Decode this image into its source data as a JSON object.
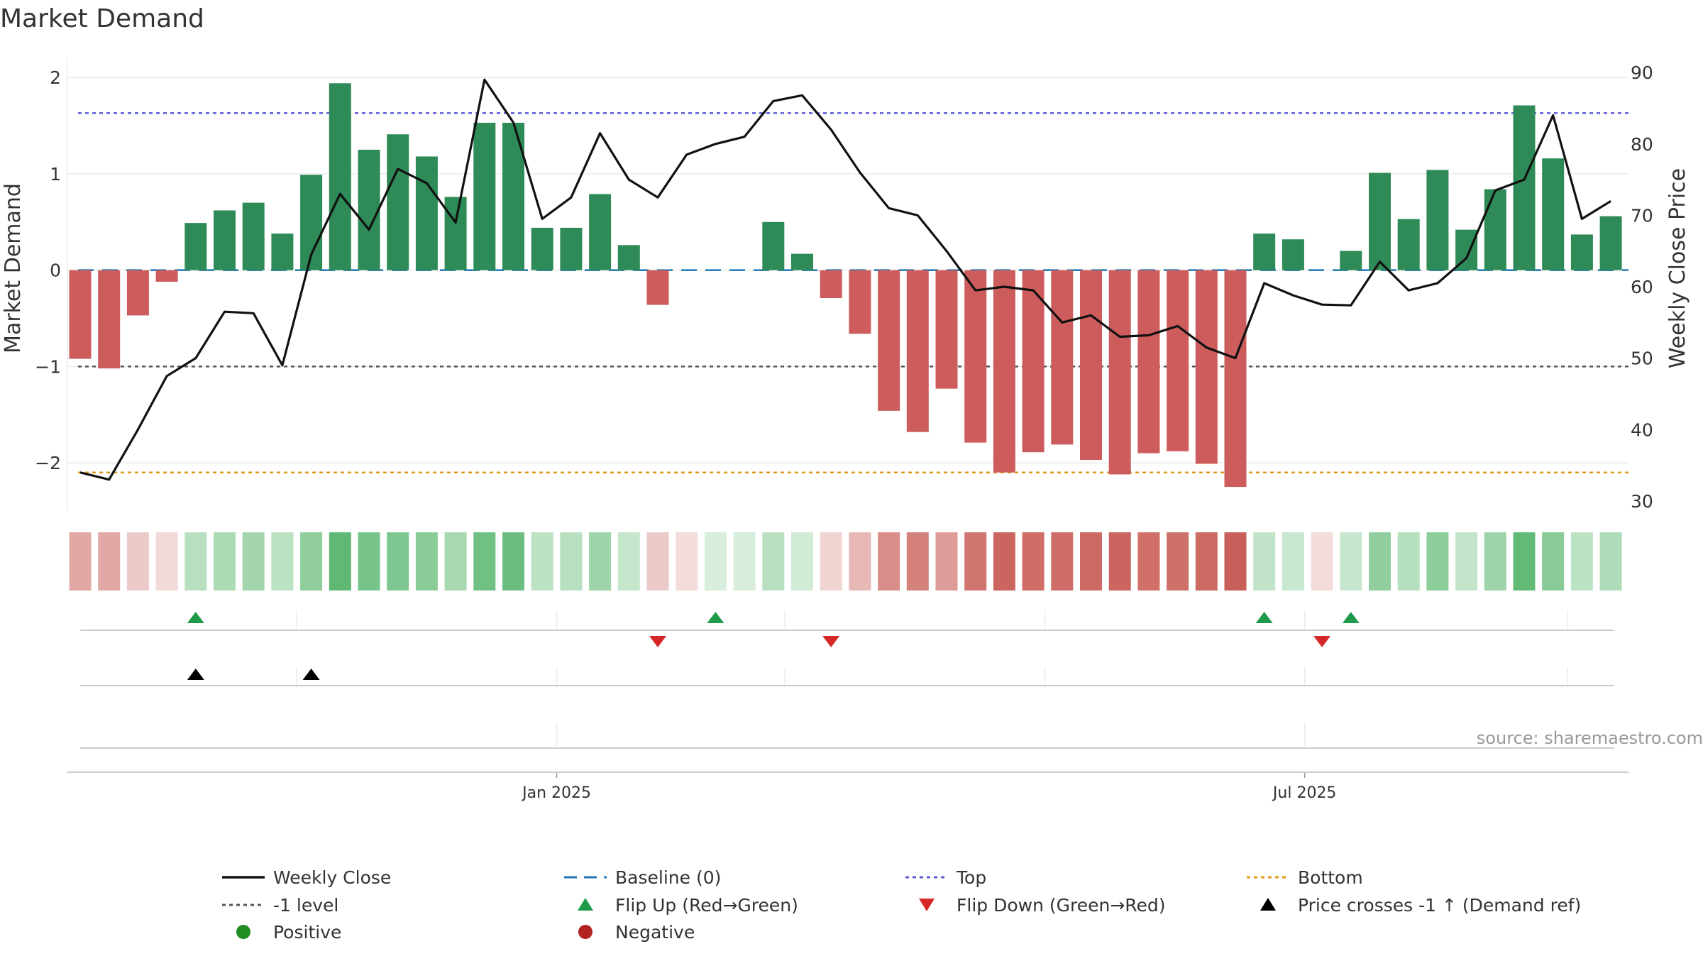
{
  "chart_data": {
    "type": "bar",
    "title": "Market Demand",
    "ylabel": "Market Demand",
    "y2label": "Weekly Close Price",
    "ylim": [
      -2.5,
      2.2
    ],
    "y2lim": [
      28.6,
      92
    ],
    "yticks": [
      2,
      1,
      0,
      -1,
      -2
    ],
    "ytick_labels": [
      "2",
      "1",
      "0",
      "−1",
      "−2"
    ],
    "y2ticks": [
      90,
      80,
      70,
      60,
      50,
      40,
      30
    ],
    "xtick_labels": [
      "Jan 2025",
      "Jul 2025"
    ],
    "xtick_index": [
      16.5,
      42.4
    ],
    "grid": true,
    "reference_lines": {
      "baseline": 0,
      "top": 1.63,
      "minus_one": -1,
      "bottom": -2.1
    },
    "series": [
      {
        "name": "Market Demand",
        "type": "bar",
        "values": [
          -0.92,
          -1.02,
          -0.47,
          -0.12,
          0.49,
          0.62,
          0.7,
          0.38,
          0.99,
          1.94,
          1.25,
          1.41,
          1.18,
          0.76,
          1.53,
          1.53,
          0.44,
          0.44,
          0.79,
          0.26,
          -0.36,
          0.0,
          0.0,
          0.0,
          0.5,
          0.17,
          -0.29,
          -0.66,
          -1.46,
          -1.68,
          -1.23,
          -1.79,
          -2.1,
          -1.89,
          -1.81,
          -1.97,
          -2.12,
          -1.9,
          -1.88,
          -2.01,
          -2.25,
          0.38,
          0.32,
          0.0,
          0.2,
          1.01,
          0.53,
          1.04,
          0.42,
          0.84,
          1.71,
          1.16,
          0.37,
          0.56
        ]
      },
      {
        "name": "Weekly Close",
        "type": "line",
        "values": [
          34.0,
          33.0,
          40.0,
          47.5,
          50.0,
          56.5,
          56.3,
          49.0,
          64.5,
          73.0,
          68.0,
          76.5,
          74.5,
          69.0,
          89.0,
          83.0,
          69.5,
          72.5,
          81.5,
          75.0,
          72.5,
          78.5,
          80.0,
          81.0,
          86.0,
          86.8,
          82.0,
          76.0,
          71.0,
          70.0,
          65.0,
          59.5,
          60.0,
          59.5,
          55.0,
          56.0,
          53.0,
          53.2,
          54.5,
          51.5,
          50.0,
          60.5,
          58.8,
          57.5,
          57.4,
          63.5,
          59.5,
          60.5,
          64.0,
          73.5,
          75.0,
          84.0,
          69.5,
          72.0
        ]
      }
    ],
    "heatmap_strip": {
      "colors": [
        "#e0a9a6",
        "#e0a9a6",
        "#eccac8",
        "#f3dad8",
        "#b8e0c0",
        "#abdbb4",
        "#a3d6ad",
        "#bce2c4",
        "#8fcd9b",
        "#5fb874",
        "#77c48a",
        "#7fc791",
        "#8bcb98",
        "#a7d8b0",
        "#6fc083",
        "#6bbe80",
        "#bde3c5",
        "#b8e0c0",
        "#9ed4a9",
        "#c5e6cb",
        "#ebcac8",
        "#f3dcda",
        "#d8eedc",
        "#d8eedc",
        "#b8e0c0",
        "#d1ebd5",
        "#f0d4d2",
        "#e7b8b6",
        "#d88d89",
        "#d4817c",
        "#de9c98",
        "#d0756f",
        "#cb6560",
        "#d06d67",
        "#cf6e69",
        "#cc6a64",
        "#cb6560",
        "#d16f69",
        "#cf716b",
        "#cc6a64",
        "#c95f5a",
        "#c1e4c8",
        "#c8e8cf",
        "#f3dcda",
        "#c6e7cd",
        "#91ce9d",
        "#b5dfbd",
        "#8dcd9a",
        "#c2e5c9",
        "#9ed4a9",
        "#63ba77",
        "#89ca96",
        "#bde3c5",
        "#afdcb8"
      ]
    },
    "flip_up": [
      4,
      22,
      41,
      44
    ],
    "flip_down": [
      20,
      26,
      43
    ],
    "price_crosses": [
      4,
      8
    ],
    "legend": {
      "placement": "bottom",
      "entries": [
        "Weekly Close",
        "Baseline (0)",
        "Top",
        "Bottom",
        "-1 level",
        "Flip Up (Red→Green)",
        "Flip Down (Green→Red)",
        "Price crosses -1 ↑ (Demand ref)",
        "Positive",
        "Negative"
      ]
    },
    "source_note": "source: sharemaestro.com"
  },
  "colors": {
    "positive_bar": "#2e8b57",
    "negative_bar": "#cd5c5c",
    "price_line": "#111111",
    "baseline": "#1f77b4",
    "top": "#5b5bd6",
    "bottom": "#e09a1a",
    "minus_one": "#555555",
    "flip_up": "#1f9a4a",
    "flip_down": "#d62728",
    "cross": "#000000",
    "positive_dot": "#228b22",
    "negative_dot": "#b22222"
  }
}
